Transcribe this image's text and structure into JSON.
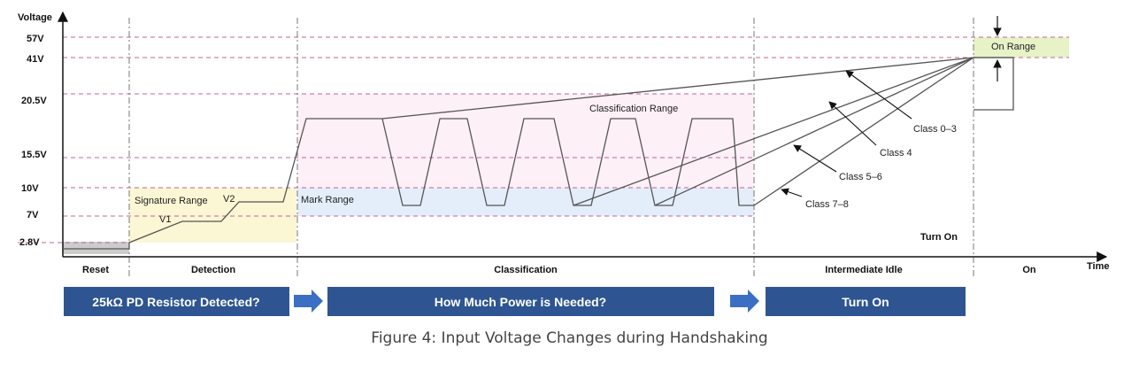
{
  "axis": {
    "y_title": "Voltage",
    "x_title": "Time"
  },
  "voltage_levels": [
    {
      "label": "57V"
    },
    {
      "label": "41V"
    },
    {
      "label": "20.5V"
    },
    {
      "label": "15.5V"
    },
    {
      "label": "10V"
    },
    {
      "label": "7V"
    },
    {
      "label": "2.8V"
    }
  ],
  "phases": [
    {
      "label": "Reset"
    },
    {
      "label": "Detection"
    },
    {
      "label": "Classification"
    },
    {
      "label": "Intermediate Idle"
    },
    {
      "label": "On"
    }
  ],
  "ranges": {
    "signature": "Signature Range",
    "mark": "Mark Range",
    "classification": "Classification Range",
    "on": "On Range"
  },
  "annotations": {
    "v1": "V1",
    "v2": "V2",
    "turn_on": "Turn On",
    "classes": [
      "Class 0–3",
      "Class 4",
      "Class 5–6",
      "Class 7–8"
    ]
  },
  "banners": [
    {
      "label": "25kΩ PD Resistor Detected?"
    },
    {
      "label": "How Much Power is Needed?"
    },
    {
      "label": "Turn On"
    }
  ],
  "colors": {
    "banner": "#2e5591",
    "arrow": "#3a6fc4",
    "grid_dashed": "#c8609a",
    "signature_fill": "#fbf6d4",
    "mark_fill": "#e3eefa",
    "classification_fill": "#fdf0f6",
    "on_fill": "#e7f3c7",
    "reset_fill": "#cccccc"
  },
  "caption": "Figure 4: Input Voltage Changes during Handshaking"
}
